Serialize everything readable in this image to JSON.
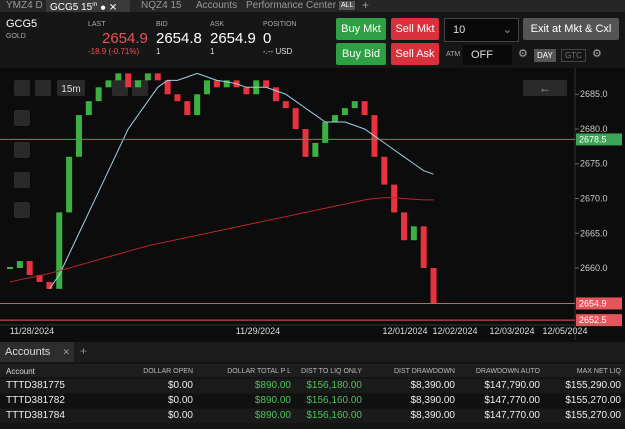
{
  "tabs": [
    "YMZ4 D",
    "GCG5 15",
    "NQZ4 15",
    "Accounts",
    "Performance Center",
    "ALL"
  ],
  "active_tab_sup": "m",
  "quote": {
    "symbol": "GCG5",
    "name": "GOLD",
    "last_label": "LAST",
    "last": "2654.9",
    "change": "-18.9 (-0.71%)",
    "bid_label": "BID",
    "bid": "2654.8",
    "bid_size": "1",
    "ask_label": "ASK",
    "ask": "2654.9",
    "ask_size": "1",
    "position_label": "POSITION",
    "position": "0",
    "pnl": "-.-- USD"
  },
  "order": {
    "buy_mkt": "Buy Mkt",
    "sell_mkt": "Sell Mkt",
    "buy_bid": "Buy Bid",
    "sell_ask": "Sell Ask",
    "quantity": "10",
    "exit": "Exit at Mkt & Cxl",
    "atm_label": "ATM",
    "atm": "OFF",
    "day": "DAY",
    "gtc": "GTC"
  },
  "chart_data": {
    "type": "candlestick",
    "interval": "15m",
    "ylim": [
      2651.8,
      2688.2
    ],
    "yticks": [
      {
        "value": 2660,
        "label": "2660.0"
      },
      {
        "value": 2665,
        "label": "2665.0"
      },
      {
        "value": 2670,
        "label": "2670.0"
      },
      {
        "value": 2675,
        "label": "2675.0"
      },
      {
        "value": 2680,
        "label": "2680.0"
      },
      {
        "value": 2685,
        "label": "2685.0"
      }
    ],
    "x_labels": [
      "11/28/2024",
      "11/29/2024",
      "12/01/2024",
      "12/02/2024",
      "12/03/2024",
      "12/05/2024"
    ],
    "up_color": "#3cb043",
    "down_color": "#e8323f",
    "closes": [
      2660,
      2661,
      2659,
      2658,
      2657,
      2668,
      2676,
      2682,
      2684,
      2686,
      2687,
      2688,
      2686,
      2687,
      2688,
      2687,
      2685,
      2684,
      2682,
      2685,
      2687,
      2686,
      2687,
      2686,
      2685,
      2687,
      2686,
      2684,
      2683,
      2680,
      2676,
      2678,
      2681,
      2682,
      2683,
      2684,
      2682,
      2676,
      2672,
      2668,
      2664,
      2666,
      2660,
      2654.9
    ],
    "series": [
      {
        "color": "#9fd3e6",
        "values": [
          null,
          null,
          null,
          null,
          2657,
          2659,
          2662,
          2665,
          2668,
          2671,
          2674,
          2677,
          2680,
          2682,
          2684,
          2686,
          2687,
          2687,
          2687.5,
          2688,
          2687.5,
          2687,
          2686.8,
          2686.5,
          2686,
          2686,
          2686,
          2685.5,
          2685,
          2684,
          2683,
          2682,
          2681,
          2681,
          2681,
          2680.5,
          2680,
          2679,
          2678,
          2677,
          2676,
          2675,
          2674,
          2673.5
        ]
      },
      {
        "color": "#b8262b",
        "values": [
          2658,
          2658.3,
          2658.6,
          2658.9,
          2659.2,
          2659.6,
          2660,
          2660.4,
          2660.8,
          2661.2,
          2661.6,
          2662,
          2662.4,
          2662.8,
          2663.2,
          2663.5,
          2663.8,
          2664.1,
          2664.4,
          2664.7,
          2665,
          2665.3,
          2665.6,
          2665.9,
          2666.2,
          2666.5,
          2666.8,
          2667.1,
          2667.4,
          2667.7,
          2668,
          2668.3,
          2668.6,
          2668.9,
          2669.2,
          2669.5,
          2669.8,
          2670,
          2670.1,
          2670.1,
          2670,
          2669.9,
          2669.8,
          2669.8
        ]
      }
    ],
    "price_lines": [
      {
        "value": 2678.5,
        "color": "#3aa655"
      },
      {
        "value": 2654.9,
        "color": "#e8545c"
      },
      {
        "value": 2652.5,
        "color": "#e8545c"
      }
    ]
  },
  "accounts": {
    "title": "Accounts",
    "columns": [
      "Account",
      "DOLLAR OPEN",
      "DOLLAR TOTAL P L",
      "DIST TO LIQ ONLY",
      "DIST DRAWDOWN",
      "DRAWDOWN AUTO",
      "MAX NET LIQ"
    ],
    "rows": [
      [
        "TTTD381775",
        "$0.00",
        "$890.00",
        "$156,180.00",
        "$8,390.00",
        "$147,790.00",
        "$155,290.00"
      ],
      [
        "TTTD381782",
        "$0.00",
        "$890.00",
        "$156,160.00",
        "$8,390.00",
        "$147,770.00",
        "$155,270.00"
      ],
      [
        "TTTD381784",
        "$0.00",
        "$890.00",
        "$156,160.00",
        "$8,390.00",
        "$147,770.00",
        "$155,270.00"
      ]
    ]
  }
}
